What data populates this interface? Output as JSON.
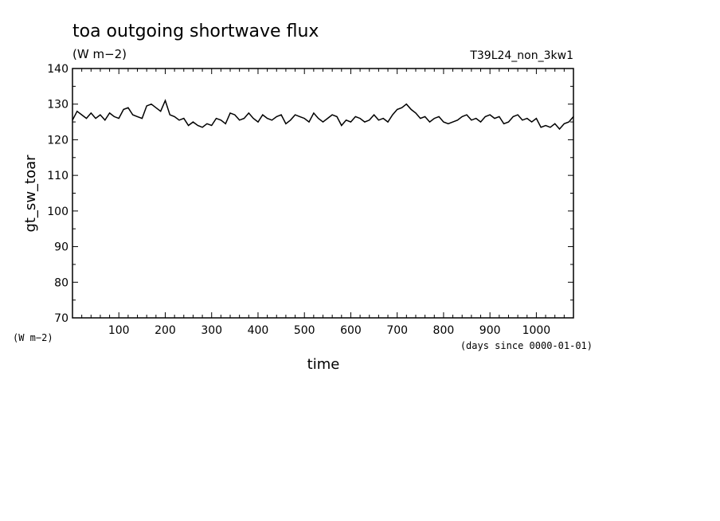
{
  "chart_data": {
    "type": "line",
    "title": "toa outgoing shortwave flux",
    "subtitle": "(W m−2)",
    "run_label": "T39L24_non_3kw1",
    "ylabel": "gt_sw_toar",
    "y_units_label": "(W m−2)",
    "xlabel": "time",
    "x_units_label": "(days since 0000-01-01)",
    "xlim": [
      0,
      1080
    ],
    "ylim": [
      70,
      140
    ],
    "x_ticks": [
      100,
      200,
      300,
      400,
      500,
      600,
      700,
      800,
      900,
      1000
    ],
    "x_tick_labels": [
      "100",
      "200",
      "300",
      "400",
      "500",
      "600",
      "700",
      "800",
      "900",
      "1000"
    ],
    "y_ticks": [
      70,
      80,
      90,
      100,
      110,
      120,
      130,
      140
    ],
    "y_tick_labels": [
      "70",
      "80",
      "90",
      "100",
      "110",
      "120",
      "130",
      "140"
    ],
    "grid": false,
    "series": [
      {
        "color": "#000000",
        "x": [
          0,
          10,
          20,
          30,
          40,
          50,
          60,
          70,
          80,
          90,
          100,
          110,
          120,
          130,
          140,
          150,
          160,
          170,
          180,
          190,
          200,
          210,
          220,
          230,
          240,
          250,
          260,
          270,
          280,
          290,
          300,
          310,
          320,
          330,
          340,
          350,
          360,
          370,
          380,
          390,
          400,
          410,
          420,
          430,
          440,
          450,
          460,
          470,
          480,
          490,
          500,
          510,
          520,
          530,
          540,
          550,
          560,
          570,
          580,
          590,
          600,
          610,
          620,
          630,
          640,
          650,
          660,
          670,
          680,
          690,
          700,
          710,
          720,
          730,
          740,
          750,
          760,
          770,
          780,
          790,
          800,
          810,
          820,
          830,
          840,
          850,
          860,
          870,
          880,
          890,
          900,
          910,
          920,
          930,
          940,
          950,
          960,
          970,
          980,
          990,
          1000,
          1010,
          1020,
          1030,
          1040,
          1050,
          1060,
          1070,
          1080
        ],
        "y": [
          125.5,
          128.0,
          127.0,
          126.0,
          127.5,
          126.0,
          127.0,
          125.5,
          127.5,
          126.5,
          126.0,
          128.5,
          129.0,
          127.0,
          126.5,
          126.0,
          129.5,
          130.0,
          129.0,
          128.0,
          131.0,
          127.0,
          126.5,
          125.5,
          126.0,
          124.0,
          125.0,
          124.0,
          123.5,
          124.5,
          124.0,
          126.0,
          125.5,
          124.5,
          127.5,
          127.0,
          125.5,
          126.0,
          127.5,
          126.0,
          125.0,
          127.0,
          126.0,
          125.5,
          126.5,
          127.0,
          124.5,
          125.5,
          127.0,
          126.5,
          126.0,
          125.0,
          127.5,
          126.0,
          125.0,
          126.0,
          127.0,
          126.5,
          124.0,
          125.5,
          125.0,
          126.5,
          126.0,
          125.0,
          125.5,
          127.0,
          125.5,
          126.0,
          125.0,
          127.0,
          128.5,
          129.0,
          130.0,
          128.5,
          127.5,
          126.0,
          126.5,
          125.0,
          126.0,
          126.5,
          125.0,
          124.5,
          125.0,
          125.5,
          126.5,
          127.0,
          125.5,
          126.0,
          125.0,
          126.5,
          127.0,
          126.0,
          126.5,
          124.5,
          125.0,
          126.5,
          127.0,
          125.5,
          126.0,
          125.0,
          126.0,
          123.5,
          124.0,
          123.5,
          124.5,
          123.0,
          124.5,
          125.0,
          126.5
        ]
      }
    ]
  }
}
